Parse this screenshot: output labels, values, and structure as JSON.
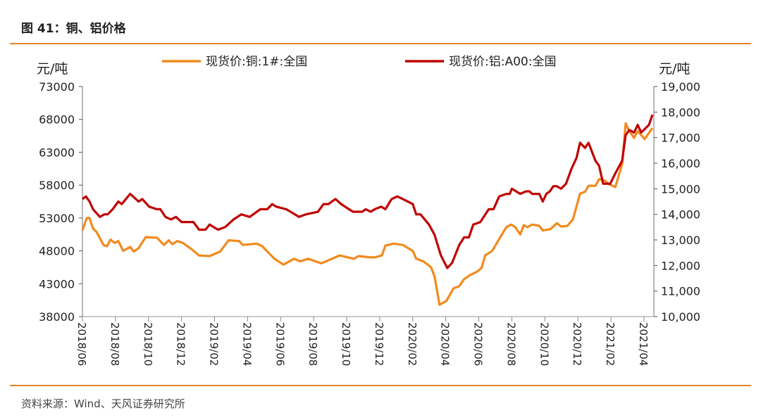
{
  "header": {
    "title": "图 41：铜、铝价格"
  },
  "footer": {
    "source": "资料来源：Wind、天风证券研究所"
  },
  "chart_data": {
    "type": "line",
    "title": "铜、铝价格",
    "x_unit": "months since 2018/06",
    "x_ticks": [
      "2018/06",
      "2018/08",
      "2018/10",
      "2018/12",
      "2019/02",
      "2019/04",
      "2019/06",
      "2019/08",
      "2019/10",
      "2019/12",
      "2020/02",
      "2020/04",
      "2020/06",
      "2020/08",
      "2020/10",
      "2020/12",
      "2021/02",
      "2021/04"
    ],
    "xlim": [
      0,
      34.6
    ],
    "left_axis": {
      "label": "元/吨",
      "ylim": [
        38000,
        73000
      ],
      "ticks": [
        "38000",
        "43000",
        "48000",
        "53000",
        "58000",
        "63000",
        "68000",
        "73000"
      ]
    },
    "right_axis": {
      "label": "元/吨",
      "ylim": [
        10000,
        19000
      ],
      "ticks": [
        "10,000",
        "11,000",
        "12,000",
        "13,000",
        "14,000",
        "15,000",
        "16,000",
        "17,000",
        "18,000",
        "19,000"
      ]
    },
    "legend_position": "top",
    "series": [
      {
        "name": "现货价:铜:1#:全国",
        "axis": "left",
        "color": "#F28A1E",
        "points": [
          [
            0,
            51100
          ],
          [
            0.26,
            53000
          ],
          [
            0.43,
            53000
          ],
          [
            0.64,
            51400
          ],
          [
            0.85,
            50900
          ],
          [
            1.28,
            48900
          ],
          [
            1.49,
            48700
          ],
          [
            1.7,
            49700
          ],
          [
            1.96,
            49200
          ],
          [
            2.17,
            49500
          ],
          [
            2.47,
            48000
          ],
          [
            2.89,
            48600
          ],
          [
            3.11,
            47900
          ],
          [
            3.4,
            48400
          ],
          [
            3.83,
            50100
          ],
          [
            4.51,
            50000
          ],
          [
            4.94,
            48900
          ],
          [
            5.23,
            49600
          ],
          [
            5.45,
            49000
          ],
          [
            5.74,
            49500
          ],
          [
            6.09,
            49200
          ],
          [
            6.64,
            48200
          ],
          [
            7.06,
            47300
          ],
          [
            7.7,
            47200
          ],
          [
            8.34,
            47900
          ],
          [
            8.85,
            49600
          ],
          [
            9.49,
            49500
          ],
          [
            9.7,
            48900
          ],
          [
            10.55,
            49100
          ],
          [
            10.89,
            48700
          ],
          [
            11.19,
            47900
          ],
          [
            11.62,
            46800
          ],
          [
            12.17,
            45900
          ],
          [
            12.81,
            46800
          ],
          [
            13.19,
            46400
          ],
          [
            13.66,
            46800
          ],
          [
            14.47,
            46100
          ],
          [
            15.57,
            47300
          ],
          [
            16.43,
            46800
          ],
          [
            16.72,
            47200
          ],
          [
            17.45,
            47000
          ],
          [
            17.7,
            47000
          ],
          [
            18.13,
            47300
          ],
          [
            18.34,
            48800
          ],
          [
            18.85,
            49100
          ],
          [
            19.4,
            48900
          ],
          [
            20,
            48000
          ],
          [
            20.21,
            46800
          ],
          [
            20.64,
            46400
          ],
          [
            21.11,
            45500
          ],
          [
            21.32,
            44100
          ],
          [
            21.62,
            39800
          ],
          [
            22.04,
            40400
          ],
          [
            22.47,
            42300
          ],
          [
            22.81,
            42600
          ],
          [
            23.11,
            43700
          ],
          [
            23.53,
            44400
          ],
          [
            23.87,
            44800
          ],
          [
            24.17,
            45400
          ],
          [
            24.38,
            47300
          ],
          [
            24.81,
            48000
          ],
          [
            25.66,
            51600
          ],
          [
            25.96,
            52000
          ],
          [
            26.21,
            51600
          ],
          [
            26.51,
            50500
          ],
          [
            26.72,
            51900
          ],
          [
            26.94,
            51600
          ],
          [
            27.23,
            52000
          ],
          [
            27.66,
            51800
          ],
          [
            27.87,
            51100
          ],
          [
            28.34,
            51300
          ],
          [
            28.72,
            52200
          ],
          [
            28.98,
            51700
          ],
          [
            29.36,
            51800
          ],
          [
            29.7,
            52800
          ],
          [
            30.13,
            56700
          ],
          [
            30.43,
            57000
          ],
          [
            30.64,
            57900
          ],
          [
            31.06,
            57900
          ],
          [
            31.28,
            58900
          ],
          [
            31.62,
            58700
          ],
          [
            31.91,
            58100
          ],
          [
            32.26,
            57700
          ],
          [
            32.68,
            61200
          ],
          [
            32.89,
            67400
          ],
          [
            33.11,
            66200
          ],
          [
            33.4,
            65200
          ],
          [
            33.62,
            66200
          ],
          [
            34.04,
            65000
          ],
          [
            34.51,
            66700
          ]
        ]
      },
      {
        "name": "现货价:铝:A00:全国",
        "axis": "right",
        "color": "#C00000",
        "points": [
          [
            0,
            14600
          ],
          [
            0.21,
            14700
          ],
          [
            0.43,
            14500
          ],
          [
            0.64,
            14200
          ],
          [
            1.06,
            13900
          ],
          [
            1.32,
            14000
          ],
          [
            1.53,
            14000
          ],
          [
            1.83,
            14200
          ],
          [
            2.17,
            14500
          ],
          [
            2.38,
            14400
          ],
          [
            2.89,
            14800
          ],
          [
            3.4,
            14500
          ],
          [
            3.62,
            14600
          ],
          [
            4.04,
            14300
          ],
          [
            4.51,
            14200
          ],
          [
            4.72,
            14200
          ],
          [
            5.02,
            13900
          ],
          [
            5.36,
            13800
          ],
          [
            5.66,
            13900
          ],
          [
            6,
            13700
          ],
          [
            6.72,
            13700
          ],
          [
            7.06,
            13400
          ],
          [
            7.45,
            13400
          ],
          [
            7.7,
            13600
          ],
          [
            8.21,
            13400
          ],
          [
            8.64,
            13500
          ],
          [
            9.15,
            13800
          ],
          [
            9.62,
            14000
          ],
          [
            10.13,
            13900
          ],
          [
            10.77,
            14200
          ],
          [
            11.19,
            14200
          ],
          [
            11.49,
            14400
          ],
          [
            11.74,
            14300
          ],
          [
            12.34,
            14200
          ],
          [
            12.6,
            14100
          ],
          [
            13.11,
            13900
          ],
          [
            13.53,
            14000
          ],
          [
            14.26,
            14100
          ],
          [
            14.6,
            14400
          ],
          [
            14.89,
            14400
          ],
          [
            15.32,
            14600
          ],
          [
            15.66,
            14400
          ],
          [
            16.38,
            14100
          ],
          [
            16.94,
            14100
          ],
          [
            17.15,
            14200
          ],
          [
            17.45,
            14100
          ],
          [
            17.7,
            14200
          ],
          [
            18.09,
            14300
          ],
          [
            18.34,
            14200
          ],
          [
            18.72,
            14600
          ],
          [
            19.06,
            14700
          ],
          [
            19.4,
            14600
          ],
          [
            20,
            14400
          ],
          [
            20.21,
            14000
          ],
          [
            20.47,
            14000
          ],
          [
            20.98,
            13600
          ],
          [
            21.32,
            13200
          ],
          [
            21.7,
            12400
          ],
          [
            22.09,
            11900
          ],
          [
            22.38,
            12100
          ],
          [
            22.81,
            12800
          ],
          [
            23.11,
            13100
          ],
          [
            23.4,
            13100
          ],
          [
            23.66,
            13600
          ],
          [
            24.09,
            13700
          ],
          [
            24.6,
            14200
          ],
          [
            24.89,
            14200
          ],
          [
            25.23,
            14700
          ],
          [
            25.66,
            14800
          ],
          [
            25.87,
            14800
          ],
          [
            26,
            15000
          ],
          [
            26.51,
            14800
          ],
          [
            26.85,
            14900
          ],
          [
            27.06,
            14900
          ],
          [
            27.23,
            14800
          ],
          [
            27.66,
            14800
          ],
          [
            27.87,
            14500
          ],
          [
            28.09,
            14800
          ],
          [
            28.3,
            14900
          ],
          [
            28.51,
            15100
          ],
          [
            28.72,
            15100
          ],
          [
            28.98,
            15000
          ],
          [
            29.28,
            15200
          ],
          [
            29.62,
            15800
          ],
          [
            29.91,
            16200
          ],
          [
            30.13,
            16800
          ],
          [
            30.43,
            16600
          ],
          [
            30.64,
            16800
          ],
          [
            31.06,
            16100
          ],
          [
            31.28,
            15900
          ],
          [
            31.53,
            15200
          ],
          [
            31.96,
            15200
          ],
          [
            32.26,
            15600
          ],
          [
            32.68,
            16100
          ],
          [
            32.89,
            17100
          ],
          [
            33.11,
            17300
          ],
          [
            33.4,
            17200
          ],
          [
            33.62,
            17500
          ],
          [
            33.83,
            17200
          ],
          [
            34.3,
            17500
          ],
          [
            34.51,
            17900
          ]
        ]
      }
    ]
  }
}
